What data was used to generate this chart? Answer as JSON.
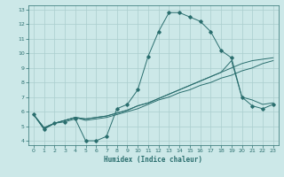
{
  "xlabel": "Humidex (Indice chaleur)",
  "bg_color": "#cce8e8",
  "grid_color": "#aacece",
  "line_color": "#2a6e6e",
  "xlim": [
    -0.5,
    23.5
  ],
  "ylim": [
    3.7,
    13.3
  ],
  "xticks": [
    0,
    1,
    2,
    3,
    4,
    5,
    6,
    7,
    8,
    9,
    10,
    11,
    12,
    13,
    14,
    15,
    16,
    17,
    18,
    19,
    20,
    21,
    22,
    23
  ],
  "yticks": [
    4,
    5,
    6,
    7,
    8,
    9,
    10,
    11,
    12,
    13
  ],
  "series": [
    {
      "x": [
        0,
        1,
        2,
        3,
        4,
        5,
        6,
        7,
        8,
        9,
        10,
        11,
        12,
        13,
        14,
        15,
        16,
        17,
        18,
        19,
        20,
        21,
        22,
        23
      ],
      "y": [
        5.8,
        4.8,
        5.2,
        5.3,
        5.5,
        4.0,
        4.0,
        4.3,
        6.2,
        6.5,
        7.5,
        9.8,
        11.5,
        12.8,
        12.8,
        12.5,
        12.2,
        11.5,
        10.2,
        9.7,
        7.0,
        6.4,
        6.2,
        6.5
      ],
      "marker": true
    },
    {
      "x": [
        0,
        1,
        2,
        3,
        4,
        5,
        6,
        7,
        8,
        9,
        10,
        11,
        12,
        13,
        14,
        15,
        16,
        17,
        18,
        19,
        20,
        21,
        22,
        23
      ],
      "y": [
        5.8,
        4.8,
        5.2,
        5.4,
        5.6,
        5.4,
        5.5,
        5.6,
        5.8,
        6.0,
        6.2,
        6.5,
        6.8,
        7.0,
        7.3,
        7.5,
        7.8,
        8.0,
        8.3,
        8.5,
        8.8,
        9.0,
        9.3,
        9.5
      ],
      "marker": false
    },
    {
      "x": [
        0,
        1,
        2,
        3,
        4,
        5,
        6,
        7,
        8,
        9,
        10,
        11,
        12,
        13,
        14,
        15,
        16,
        17,
        18,
        19,
        20,
        21,
        22,
        23
      ],
      "y": [
        5.8,
        4.9,
        5.2,
        5.4,
        5.6,
        5.5,
        5.6,
        5.7,
        5.9,
        6.1,
        6.4,
        6.6,
        6.9,
        7.2,
        7.5,
        7.8,
        8.1,
        8.4,
        8.7,
        9.0,
        9.3,
        9.5,
        9.6,
        9.7
      ],
      "marker": false
    },
    {
      "x": [
        0,
        1,
        2,
        3,
        4,
        5,
        6,
        7,
        8,
        9,
        10,
        11,
        12,
        13,
        14,
        15,
        16,
        17,
        18,
        19,
        20,
        21,
        22,
        23
      ],
      "y": [
        5.8,
        4.9,
        5.2,
        5.4,
        5.6,
        5.5,
        5.6,
        5.7,
        5.9,
        6.1,
        6.4,
        6.6,
        6.9,
        7.2,
        7.5,
        7.8,
        8.1,
        8.4,
        8.7,
        9.5,
        7.0,
        6.8,
        6.5,
        6.6
      ],
      "marker": false
    }
  ]
}
